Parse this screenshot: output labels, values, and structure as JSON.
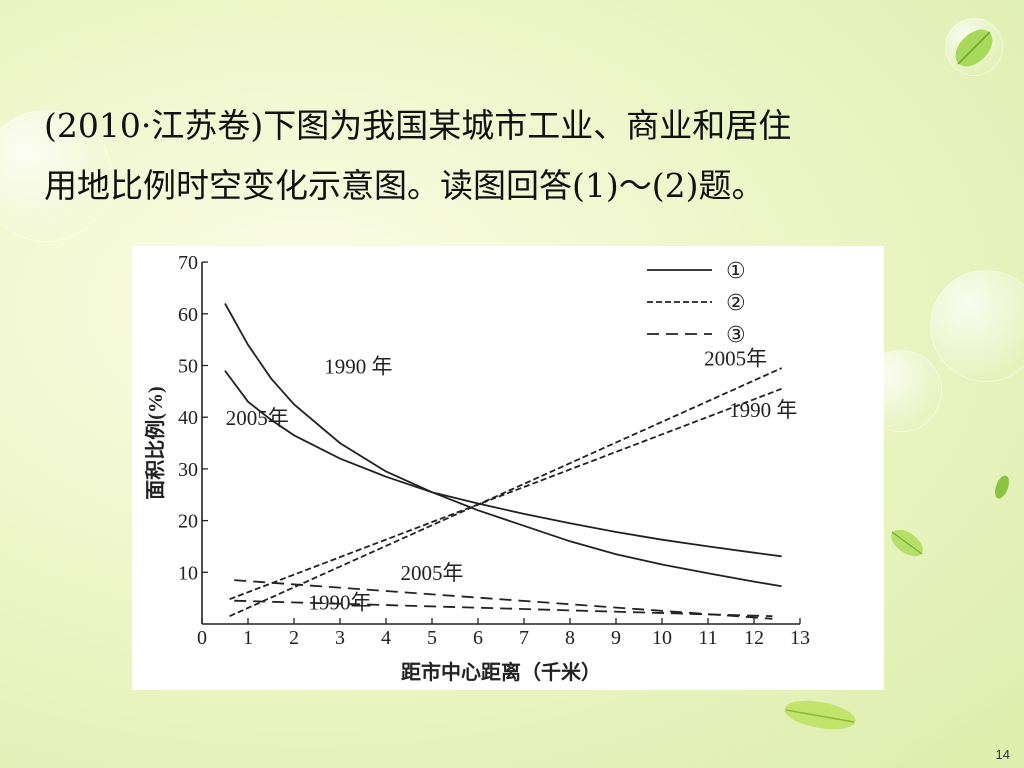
{
  "question": {
    "line1": "(2010·江苏卷)下图为我国某城市工业、商业和居住",
    "line2": "用地比例时空变化示意图。读图回答(1)～(2)题。"
  },
  "page_number": "14",
  "chart_data": {
    "type": "line",
    "title": "",
    "xlabel": "距市中心距离（千米）",
    "ylabel": "面积比例(%)",
    "xlim": [
      0,
      13
    ],
    "ylim": [
      0,
      70
    ],
    "x_ticks": [
      "0",
      "1",
      "2",
      "3",
      "4",
      "5",
      "6",
      "7",
      "8",
      "9",
      "10",
      "11",
      "12",
      "13"
    ],
    "y_ticks": [
      "10",
      "20",
      "30",
      "40",
      "50",
      "60",
      "70"
    ],
    "legend": {
      "placement": "top-right",
      "entries": [
        {
          "symbol": "①",
          "style": "solid"
        },
        {
          "symbol": "②",
          "style": "dotted"
        },
        {
          "symbol": "③",
          "style": "dashed"
        }
      ]
    },
    "series": [
      {
        "group": "①",
        "year_label": "1990 年",
        "style": "solid",
        "points": [
          [
            0.5,
            62
          ],
          [
            1,
            54
          ],
          [
            1.5,
            47.5
          ],
          [
            2,
            42.5
          ],
          [
            3,
            35
          ],
          [
            4,
            29.5
          ],
          [
            5,
            25.5
          ],
          [
            6,
            22
          ],
          [
            7,
            19
          ],
          [
            8,
            16
          ],
          [
            9,
            13.5
          ],
          [
            10,
            11.5
          ],
          [
            11,
            9.8
          ],
          [
            12,
            8.2
          ],
          [
            12.6,
            7.3
          ]
        ]
      },
      {
        "group": "①",
        "year_label": "2005年",
        "style": "solid",
        "points": [
          [
            0.5,
            49
          ],
          [
            1,
            43
          ],
          [
            1.5,
            39.5
          ],
          [
            2,
            36.5
          ],
          [
            3,
            32
          ],
          [
            4,
            28.5
          ],
          [
            5,
            25.5
          ],
          [
            6,
            23.3
          ],
          [
            7,
            21.3
          ],
          [
            8,
            19.5
          ],
          [
            9,
            17.8
          ],
          [
            10,
            16.3
          ],
          [
            11,
            15
          ],
          [
            12,
            13.8
          ],
          [
            12.6,
            13.1
          ]
        ]
      },
      {
        "group": "②",
        "year_label": "2005年",
        "style": "dotted",
        "points": [
          [
            0.6,
            1.5
          ],
          [
            12.6,
            49.5
          ]
        ]
      },
      {
        "group": "②",
        "year_label": "1990 年",
        "style": "dotted",
        "points": [
          [
            0.6,
            4.8
          ],
          [
            12.6,
            45.5
          ]
        ]
      },
      {
        "group": "③",
        "year_label": "2005年",
        "style": "dashed",
        "points": [
          [
            0.7,
            8.5
          ],
          [
            12.4,
            1
          ]
        ]
      },
      {
        "group": "③",
        "year_label": "1990年",
        "style": "dashed",
        "points": [
          [
            0.7,
            4.5
          ],
          [
            12.4,
            1.5
          ]
        ]
      }
    ]
  }
}
